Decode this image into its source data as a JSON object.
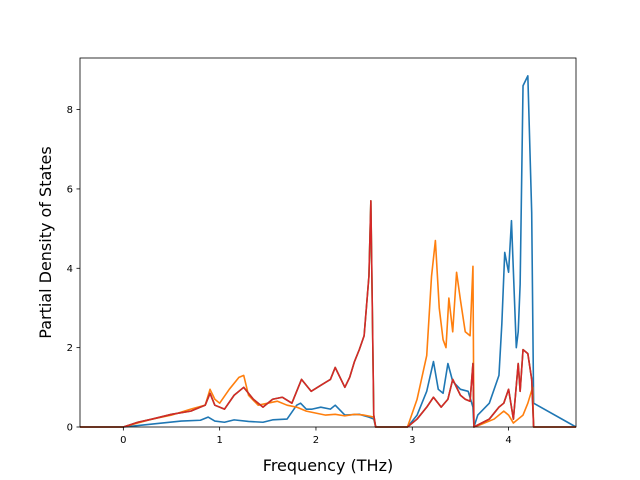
{
  "chart_data": {
    "type": "line",
    "title": "",
    "xlabel": "Frequency (THz)",
    "ylabel": "Partial Density of States",
    "xlim": [
      -0.45,
      4.7
    ],
    "ylim": [
      0,
      9.3
    ],
    "xticks": [
      0,
      1,
      2,
      3,
      4
    ],
    "yticks": [
      0,
      2,
      4,
      6,
      8
    ],
    "grid": false,
    "legend": "none",
    "series": [
      {
        "color": "#1f77b4",
        "x": [
          -0.45,
          0,
          0.2,
          0.4,
          0.6,
          0.8,
          0.88,
          0.95,
          1.05,
          1.15,
          1.3,
          1.45,
          1.55,
          1.7,
          1.8,
          1.84,
          1.9,
          1.96,
          2.05,
          2.15,
          2.2,
          2.3,
          2.45,
          2.55,
          2.6,
          2.62,
          2.95,
          3.05,
          3.15,
          3.22,
          3.27,
          3.32,
          3.37,
          3.42,
          3.5,
          3.58,
          3.63,
          3.64,
          3.68,
          3.8,
          3.9,
          3.93,
          3.96,
          4.0,
          4.03,
          4.08,
          4.1,
          4.12,
          4.15,
          4.2,
          4.24,
          4.26,
          4.7
        ],
        "y": [
          0,
          0,
          0.05,
          0.1,
          0.15,
          0.17,
          0.25,
          0.15,
          0.12,
          0.18,
          0.14,
          0.12,
          0.18,
          0.2,
          0.55,
          0.6,
          0.45,
          0.45,
          0.5,
          0.45,
          0.55,
          0.3,
          0.32,
          0.25,
          0.2,
          0,
          0,
          0.3,
          0.9,
          1.65,
          0.95,
          0.85,
          1.6,
          1.15,
          0.95,
          0.9,
          0.5,
          0,
          0.3,
          0.6,
          1.3,
          2.6,
          4.4,
          3.9,
          5.2,
          2.0,
          2.4,
          3.6,
          8.6,
          8.85,
          5.4,
          0.6,
          0
        ]
      },
      {
        "color": "#ff7f0e",
        "x": [
          -0.45,
          0,
          0.15,
          0.3,
          0.5,
          0.7,
          0.85,
          0.9,
          0.95,
          1.0,
          1.1,
          1.2,
          1.25,
          1.3,
          1.4,
          1.5,
          1.6,
          1.7,
          1.8,
          1.9,
          2.0,
          2.1,
          2.2,
          2.3,
          2.4,
          2.5,
          2.6,
          2.62,
          2.95,
          3.05,
          3.15,
          3.2,
          3.24,
          3.28,
          3.32,
          3.35,
          3.38,
          3.42,
          3.46,
          3.5,
          3.55,
          3.6,
          3.63,
          3.64,
          3.7,
          3.85,
          3.95,
          4.0,
          4.05,
          4.1,
          4.15,
          4.2,
          4.25,
          4.26,
          4.7
        ],
        "y": [
          0,
          0,
          0.1,
          0.2,
          0.3,
          0.45,
          0.55,
          0.95,
          0.7,
          0.6,
          0.95,
          1.25,
          1.3,
          0.8,
          0.55,
          0.6,
          0.65,
          0.55,
          0.5,
          0.4,
          0.35,
          0.3,
          0.32,
          0.28,
          0.32,
          0.3,
          0.25,
          0,
          0,
          0.7,
          1.8,
          3.8,
          4.7,
          3.0,
          2.2,
          2.0,
          3.25,
          2.4,
          3.9,
          3.2,
          2.4,
          2.3,
          4.05,
          0,
          0.05,
          0.2,
          0.4,
          0.3,
          0.1,
          0.2,
          0.3,
          0.6,
          1.0,
          0,
          0
        ]
      },
      {
        "color": "#2ca02c",
        "x": [
          -0.45,
          0,
          0.15,
          0.3,
          0.5,
          0.7,
          0.85,
          0.9,
          0.95,
          1.05,
          1.15,
          1.25,
          1.35,
          1.45,
          1.55,
          1.65,
          1.75,
          1.85,
          1.95,
          2.05,
          2.15,
          2.2,
          2.3,
          2.35,
          2.4,
          2.45,
          2.5,
          2.55,
          2.57,
          2.6,
          2.62,
          2.95,
          3.05,
          3.15,
          3.22,
          3.3,
          3.37,
          3.42,
          3.5,
          3.55,
          3.6,
          3.63,
          3.64,
          3.8,
          3.9,
          3.95,
          4.0,
          4.05,
          4.1,
          4.12,
          4.15,
          4.2,
          4.24,
          4.26,
          4.7
        ],
        "y": [
          0,
          0,
          0.12,
          0.2,
          0.32,
          0.4,
          0.55,
          0.85,
          0.55,
          0.45,
          0.8,
          1.0,
          0.7,
          0.5,
          0.7,
          0.75,
          0.6,
          1.2,
          0.9,
          1.05,
          1.2,
          1.5,
          1.0,
          1.25,
          1.65,
          1.95,
          2.3,
          3.8,
          5.7,
          0.3,
          0,
          0,
          0.2,
          0.5,
          0.75,
          0.5,
          0.7,
          1.2,
          0.8,
          0.7,
          0.65,
          1.6,
          0,
          0.2,
          0.5,
          0.6,
          0.95,
          0.2,
          1.6,
          0.9,
          1.95,
          1.85,
          1.2,
          0,
          0
        ]
      },
      {
        "color": "#d62728",
        "x": [
          -0.45,
          0,
          0.15,
          0.3,
          0.5,
          0.7,
          0.85,
          0.9,
          0.95,
          1.05,
          1.15,
          1.25,
          1.35,
          1.45,
          1.55,
          1.65,
          1.75,
          1.85,
          1.95,
          2.05,
          2.15,
          2.2,
          2.3,
          2.35,
          2.4,
          2.45,
          2.5,
          2.55,
          2.57,
          2.6,
          2.62,
          2.95,
          3.05,
          3.15,
          3.22,
          3.3,
          3.37,
          3.42,
          3.5,
          3.55,
          3.6,
          3.63,
          3.64,
          3.8,
          3.9,
          3.95,
          4.0,
          4.05,
          4.1,
          4.12,
          4.15,
          4.2,
          4.24,
          4.26,
          4.7
        ],
        "y": [
          0,
          0,
          0.12,
          0.2,
          0.32,
          0.4,
          0.55,
          0.85,
          0.55,
          0.45,
          0.8,
          1.0,
          0.7,
          0.5,
          0.7,
          0.75,
          0.6,
          1.2,
          0.9,
          1.05,
          1.2,
          1.5,
          1.0,
          1.25,
          1.65,
          1.95,
          2.3,
          3.8,
          5.7,
          0.3,
          0,
          0,
          0.2,
          0.5,
          0.75,
          0.5,
          0.7,
          1.2,
          0.8,
          0.7,
          0.65,
          1.6,
          0,
          0.2,
          0.5,
          0.6,
          0.95,
          0.2,
          1.6,
          0.9,
          1.95,
          1.85,
          1.2,
          0,
          0
        ]
      }
    ]
  }
}
